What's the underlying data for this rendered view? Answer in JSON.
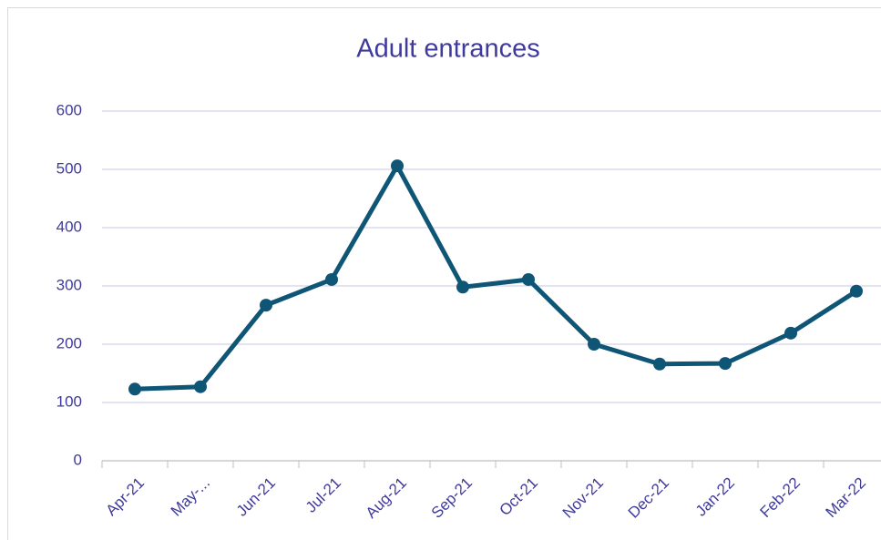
{
  "chart_data": {
    "type": "line",
    "title": "Adult entrances",
    "categories": [
      "Apr-21",
      "May-...",
      "Jun-21",
      "Jul-21",
      "Aug-21",
      "Sep-21",
      "Oct-21",
      "Nov-21",
      "Dec-21",
      "Jan-22",
      "Feb-22",
      "Mar-22"
    ],
    "series": [
      {
        "name": "Adult entrances",
        "color": "#0f5575",
        "values": [
          123,
          127,
          267,
          311,
          506,
          298,
          311,
          200,
          166,
          167,
          219,
          291
        ]
      }
    ],
    "ylim": [
      0,
      600
    ],
    "yticks": [
      0,
      100,
      200,
      300,
      400,
      500,
      600
    ],
    "grid": true
  }
}
